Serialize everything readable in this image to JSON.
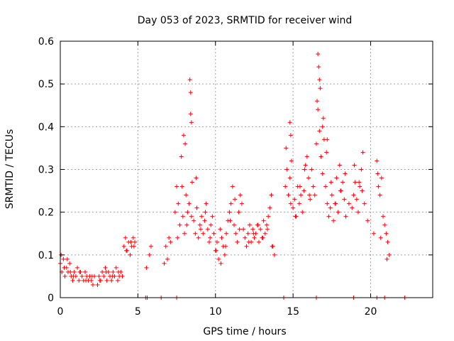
{
  "chart_data": {
    "type": "scatter",
    "title": "Day 053 of 2023, SRMTID for receiver wind",
    "xlabel": "GPS time / hours",
    "ylabel": "SRMTID / TECUs",
    "xlim": [
      0,
      24
    ],
    "ylim": [
      0,
      0.6
    ],
    "x_ticks": [
      "0",
      "5",
      "10",
      "15",
      "20"
    ],
    "x_tick_values": [
      0,
      5,
      10,
      15,
      20
    ],
    "y_ticks": [
      "0",
      "0.1",
      "0.2",
      "0.3",
      "0.4",
      "0.5",
      "0.6"
    ],
    "y_tick_values": [
      0,
      0.1,
      0.2,
      0.3,
      0.4,
      0.5,
      0.6
    ],
    "grid": true,
    "marker": "+",
    "color": "#ff0000",
    "series": [
      {
        "name": "SRMTID",
        "x": [
          0.0,
          0.1,
          0.2,
          0.3,
          0.4,
          0.5,
          0.6,
          0.7,
          0.8,
          0.9,
          1.0,
          1.1,
          1.2,
          1.3,
          1.4,
          1.5,
          1.6,
          1.7,
          1.8,
          1.9,
          2.0,
          2.1,
          2.2,
          2.4,
          2.5,
          2.6,
          2.7,
          2.8,
          2.9,
          3.0,
          3.1,
          3.2,
          3.3,
          3.4,
          3.5,
          3.6,
          3.7,
          3.8,
          3.9,
          4.0,
          4.1,
          4.2,
          4.3,
          4.4,
          4.5,
          4.6,
          4.7,
          4.8,
          5.55,
          5.75,
          5.85,
          6.7,
          6.8,
          6.9,
          7.0,
          7.1,
          7.4,
          7.5,
          7.6,
          7.7,
          7.8,
          7.9,
          8.0,
          8.1,
          8.2,
          8.3,
          8.4,
          8.5,
          8.6,
          8.7,
          8.8,
          8.9,
          9.0,
          9.1,
          9.2,
          9.3,
          9.4,
          9.5,
          9.6,
          9.7,
          9.8,
          9.9,
          10.0,
          10.1,
          10.2,
          10.3,
          10.4,
          10.5,
          10.6,
          10.7,
          10.8,
          10.9,
          11.0,
          11.1,
          11.2,
          11.3,
          11.4,
          11.5,
          11.6,
          11.7,
          11.8,
          11.9,
          12.0,
          12.1,
          12.2,
          12.3,
          12.4,
          12.5,
          12.6,
          12.7,
          12.8,
          12.9,
          13.0,
          13.1,
          13.2,
          13.3,
          13.4,
          13.5,
          13.6,
          13.7,
          13.8,
          14.5,
          14.6,
          14.7,
          14.8,
          14.9,
          15.0,
          15.1,
          15.2,
          15.3,
          15.4,
          15.5,
          15.6,
          15.7,
          15.8,
          15.9,
          16.0,
          16.1,
          16.2,
          16.3,
          16.4,
          16.5,
          16.6,
          16.7,
          16.8,
          16.9,
          17.0,
          17.1,
          17.2,
          17.3,
          17.4,
          17.5,
          17.6,
          17.7,
          17.8,
          17.9,
          18.0,
          18.1,
          18.2,
          18.3,
          18.4,
          18.6,
          18.8,
          18.9,
          19.0,
          19.1,
          19.2,
          19.3,
          19.4,
          19.5,
          19.6,
          19.8,
          20.2,
          20.4,
          20.5,
          20.6,
          20.7,
          20.8,
          20.9,
          21.0,
          21.1,
          21.2,
          0.05,
          0.25,
          0.45,
          0.65,
          0.85,
          1.25,
          1.65,
          2.05,
          2.55,
          2.95,
          3.35,
          3.75,
          4.25,
          4.55,
          4.75,
          7.55,
          7.85,
          8.15,
          8.45,
          8.75,
          9.05,
          9.35,
          9.65,
          10.05,
          10.35,
          10.65,
          10.95,
          11.25,
          11.55,
          12.15,
          12.45,
          12.75,
          13.05,
          13.35,
          13.65,
          14.55,
          14.85,
          15.15,
          15.45,
          15.75,
          16.05,
          16.55,
          16.75,
          16.95,
          17.15,
          17.45,
          17.75,
          18.05,
          18.35,
          18.95,
          19.25,
          19.45,
          20.45,
          20.65,
          21.05,
          16.6,
          16.65,
          16.7,
          8.35,
          8.4,
          8.45,
          7.95,
          8.05,
          14.8,
          14.85,
          16.9,
          17.2,
          5.5,
          5.6,
          6.5,
          7.5,
          14.4,
          16.5,
          18.9,
          20.4,
          20.9,
          22.2
        ],
        "y": [
          0.08,
          0.06,
          0.09,
          0.05,
          0.07,
          0.06,
          0.08,
          0.05,
          0.04,
          0.06,
          0.05,
          0.07,
          0.04,
          0.06,
          0.05,
          0.04,
          0.06,
          0.05,
          0.04,
          0.05,
          0.04,
          0.03,
          0.05,
          0.03,
          0.05,
          0.04,
          0.06,
          0.05,
          0.07,
          0.04,
          0.06,
          0.05,
          0.04,
          0.06,
          0.05,
          0.07,
          0.04,
          0.05,
          0.06,
          0.05,
          0.12,
          0.14,
          0.11,
          0.13,
          0.1,
          0.12,
          0.14,
          0.13,
          0.07,
          0.1,
          0.12,
          0.08,
          0.12,
          0.09,
          0.14,
          0.13,
          0.2,
          0.26,
          0.22,
          0.17,
          0.33,
          0.19,
          0.15,
          0.24,
          0.2,
          0.22,
          0.43,
          0.27,
          0.18,
          0.15,
          0.21,
          0.14,
          0.17,
          0.19,
          0.15,
          0.18,
          0.22,
          0.16,
          0.13,
          0.17,
          0.19,
          0.15,
          0.11,
          0.13,
          0.09,
          0.16,
          0.14,
          0.12,
          0.1,
          0.15,
          0.18,
          0.2,
          0.22,
          0.26,
          0.17,
          0.15,
          0.13,
          0.2,
          0.24,
          0.22,
          0.16,
          0.14,
          0.12,
          0.15,
          0.17,
          0.13,
          0.16,
          0.14,
          0.15,
          0.17,
          0.13,
          0.16,
          0.14,
          0.18,
          0.15,
          0.17,
          0.19,
          0.21,
          0.24,
          0.12,
          0.1,
          0.26,
          0.3,
          0.24,
          0.28,
          0.32,
          0.21,
          0.23,
          0.19,
          0.26,
          0.22,
          0.24,
          0.2,
          0.25,
          0.31,
          0.33,
          0.28,
          0.23,
          0.3,
          0.26,
          0.24,
          0.36,
          0.44,
          0.39,
          0.33,
          0.29,
          0.37,
          0.26,
          0.22,
          0.19,
          0.21,
          0.24,
          0.18,
          0.22,
          0.28,
          0.2,
          0.31,
          0.25,
          0.27,
          0.23,
          0.19,
          0.22,
          0.21,
          0.24,
          0.27,
          0.23,
          0.2,
          0.26,
          0.3,
          0.34,
          0.22,
          0.18,
          0.15,
          0.32,
          0.26,
          0.24,
          0.28,
          0.19,
          0.17,
          0.15,
          0.13,
          0.1,
          0.1,
          0.07,
          0.09,
          0.06,
          0.05,
          0.06,
          0.04,
          0.05,
          0.04,
          0.06,
          0.05,
          0.06,
          0.11,
          0.13,
          0.12,
          0.14,
          0.26,
          0.17,
          0.19,
          0.28,
          0.16,
          0.2,
          0.14,
          0.11,
          0.08,
          0.12,
          0.18,
          0.23,
          0.16,
          0.13,
          0.15,
          0.17,
          0.14,
          0.16,
          0.12,
          0.35,
          0.22,
          0.19,
          0.26,
          0.3,
          0.24,
          0.46,
          0.49,
          0.42,
          0.34,
          0.27,
          0.22,
          0.25,
          0.29,
          0.31,
          0.27,
          0.25,
          0.29,
          0.14,
          0.09,
          0.57,
          0.54,
          0.51,
          0.51,
          0.48,
          0.41,
          0.38,
          0.36,
          0.41,
          0.38,
          0.4,
          0.37,
          0.0,
          0.0,
          0.0,
          0.0,
          0.0,
          0.0,
          0.0,
          0.0,
          0.0,
          0.0
        ]
      }
    ]
  }
}
